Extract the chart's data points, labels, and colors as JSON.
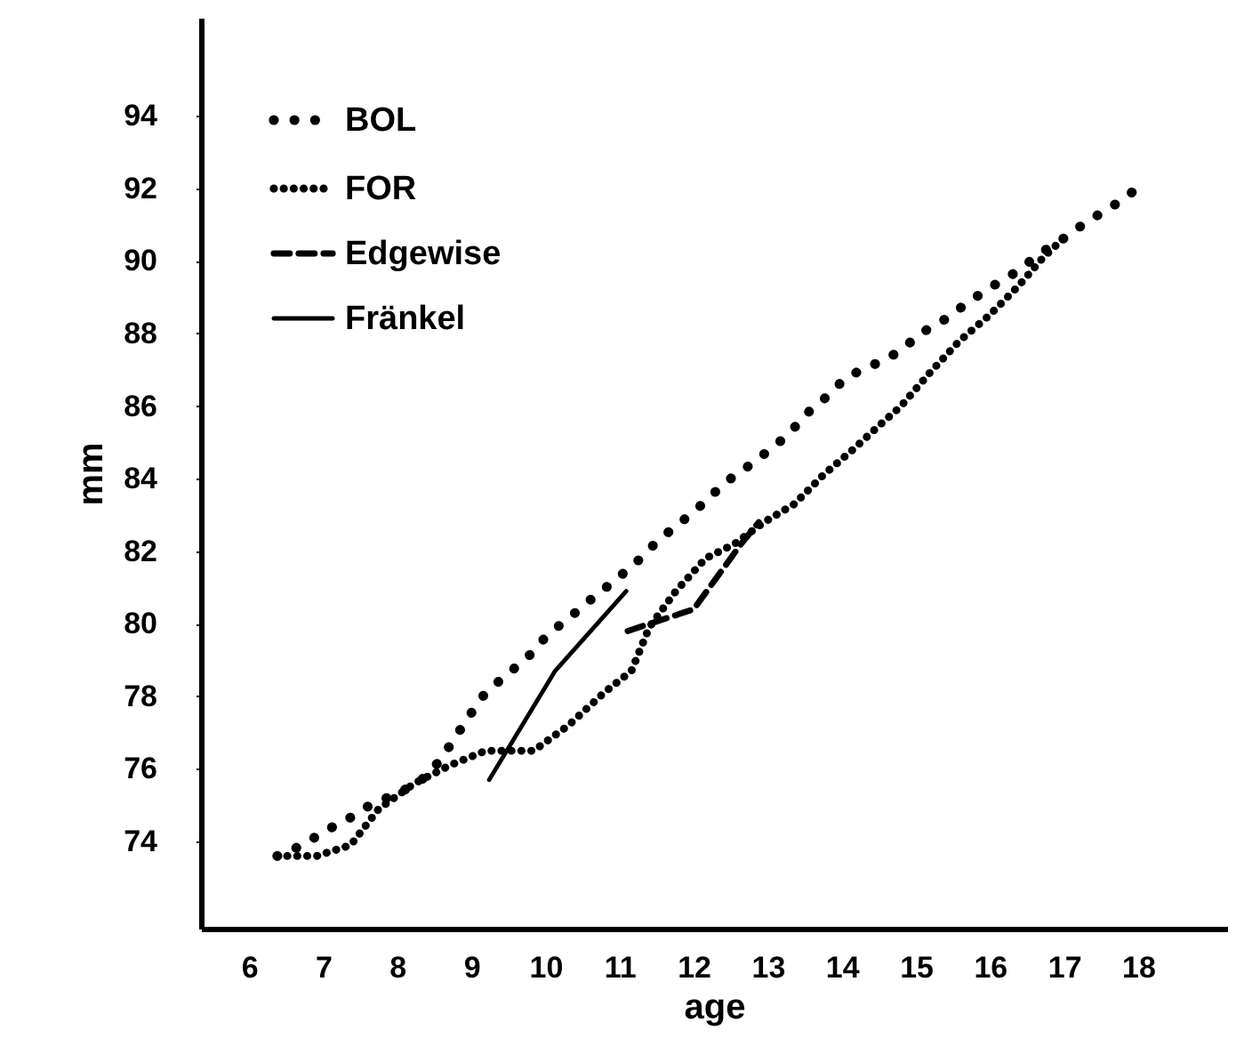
{
  "chart_data": {
    "type": "line",
    "xlabel": "age",
    "ylabel": "mm",
    "xlim": [
      5.35,
      19.2
    ],
    "ylim": [
      71.6,
      96.7
    ],
    "xticks": [
      6,
      7,
      8,
      9,
      10,
      11,
      12,
      13,
      14,
      15,
      16,
      17,
      18
    ],
    "yticks": [
      74,
      76,
      78,
      80,
      82,
      84,
      86,
      88,
      90,
      92,
      94
    ],
    "legend": "top left",
    "grid": false,
    "series": [
      {
        "name": "BOL",
        "color": "#000000",
        "line_style": "dotted",
        "x": [
          6.38,
          6.72,
          7.03,
          7.32,
          7.63,
          7.97,
          8.28,
          8.52,
          8.73,
          8.95,
          9.19,
          9.48,
          9.77,
          10.03,
          10.34,
          10.63,
          10.94,
          11.23,
          11.52,
          11.83,
          12.12,
          12.43,
          12.71,
          13.03,
          13.27,
          13.53,
          13.82,
          14.06,
          14.39,
          14.78,
          15.06,
          15.4,
          15.73,
          16.03,
          16.36,
          16.67,
          16.98,
          17.32,
          17.65,
          17.99
        ],
        "values": [
          73.6,
          73.9,
          74.3,
          74.6,
          75.0,
          75.3,
          75.6,
          76.1,
          76.7,
          77.4,
          78.1,
          78.6,
          79.1,
          79.7,
          80.2,
          80.7,
          81.2,
          81.7,
          82.3,
          82.8,
          83.3,
          83.9,
          84.3,
          84.8,
          85.2,
          85.8,
          86.3,
          86.8,
          87.1,
          87.5,
          88.0,
          88.4,
          88.9,
          89.3,
          89.7,
          90.2,
          90.6,
          91.1,
          91.5,
          92.0
        ]
      },
      {
        "name": "FOR",
        "color": "#000000",
        "line_style": "dotted",
        "x": [
          6.38,
          6.91,
          7.37,
          7.56,
          7.75,
          8.23,
          8.71,
          9.19,
          9.84,
          10.31,
          10.79,
          11.16,
          11.4,
          11.76,
          12.16,
          12.55,
          12.95,
          13.36,
          13.75,
          14.15,
          14.47,
          14.8,
          15.18,
          15.59,
          15.99,
          16.38,
          16.72,
          16.98
        ],
        "values": [
          73.6,
          73.6,
          73.9,
          74.4,
          74.9,
          75.6,
          76.1,
          76.5,
          76.5,
          77.2,
          78.1,
          78.7,
          79.9,
          80.9,
          81.8,
          82.2,
          82.8,
          83.3,
          84.1,
          84.8,
          85.4,
          86.0,
          86.9,
          87.8,
          88.5,
          89.3,
          90.1,
          90.6
        ]
      },
      {
        "name": "Edgewise",
        "color": "#000000",
        "line_style": "dashed",
        "x": [
          11.11,
          12.0,
          12.64,
          12.88
        ],
        "values": [
          79.8,
          80.4,
          82.2,
          82.8
        ]
      },
      {
        "name": "Fränkel",
        "color": "#000000",
        "line_style": "solid",
        "x": [
          9.24,
          10.13,
          11.09
        ],
        "values": [
          75.7,
          78.7,
          80.9
        ]
      }
    ]
  }
}
